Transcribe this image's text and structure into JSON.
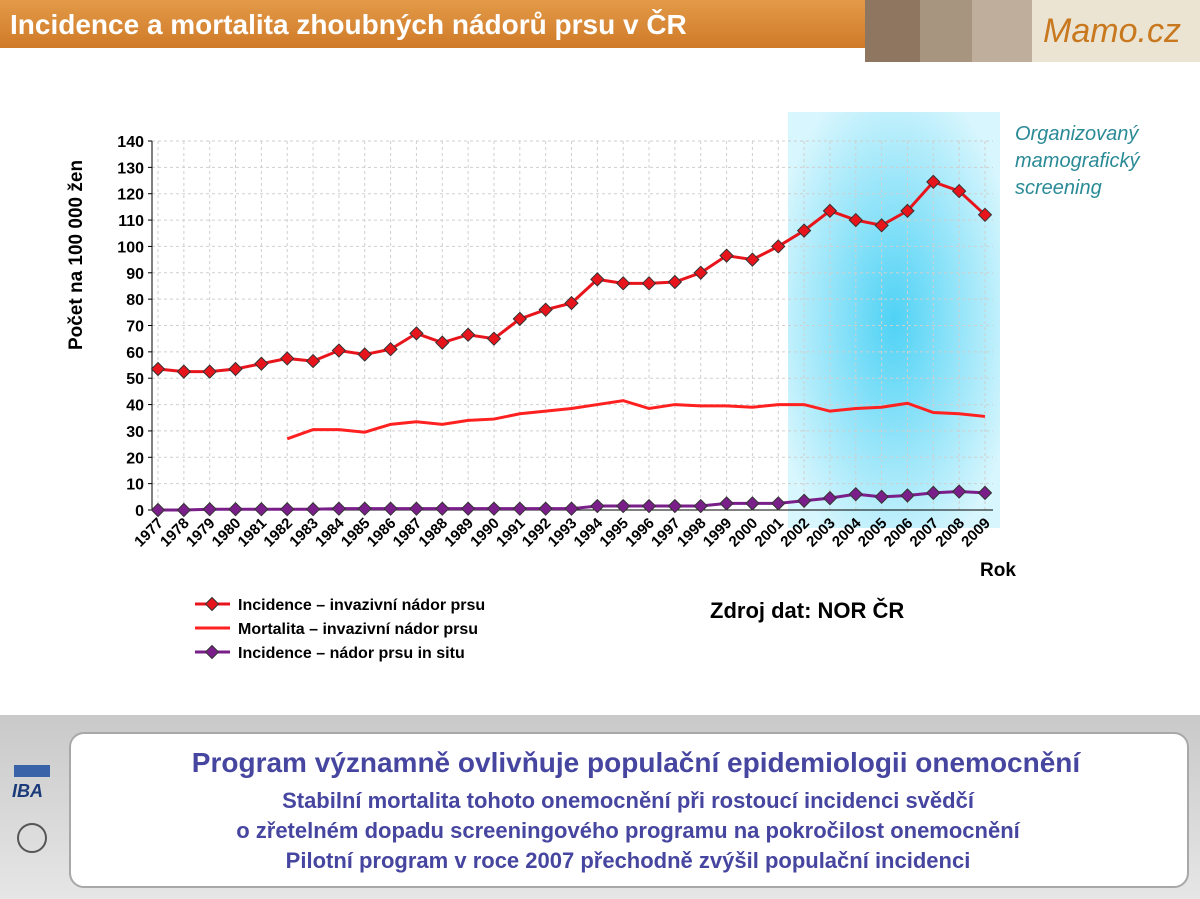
{
  "header": {
    "title": "Incidence a mortalita zhoubných nádorů prsu v ČR",
    "logo": "Mamo.cz"
  },
  "chart_data": {
    "type": "line",
    "y_label": "Počet  na 100 000 žen",
    "x_label": "Rok",
    "annotation": [
      "Organizovaný",
      "mamografický",
      "screening"
    ],
    "source": "Zdroj dat: NOR ČR",
    "categories": [
      "1977",
      "1978",
      "1979",
      "1980",
      "1981",
      "1982",
      "1983",
      "1984",
      "1985",
      "1986",
      "1987",
      "1988",
      "1989",
      "1990",
      "1991",
      "1992",
      "1993",
      "1994",
      "1995",
      "1996",
      "1997",
      "1998",
      "1999",
      "2000",
      "2001",
      "2002",
      "2003",
      "2004",
      "2005",
      "2006",
      "2007",
      "2008",
      "2009"
    ],
    "ylim": [
      0,
      140
    ],
    "yticks": [
      0,
      10,
      20,
      30,
      40,
      50,
      60,
      70,
      80,
      90,
      100,
      110,
      120,
      130,
      140
    ],
    "grid": true,
    "series": [
      {
        "name": "Incidence – invazivní nádor prsu",
        "color": "#e8141c",
        "marker": "diamond",
        "values": [
          53.5,
          52.5,
          52.5,
          53.5,
          55.5,
          57.5,
          56.5,
          60.5,
          59,
          61,
          67,
          63.5,
          66.5,
          65,
          72.5,
          76,
          78.5,
          87.5,
          86,
          86,
          86.5,
          90,
          96.5,
          95,
          100,
          106,
          113.5,
          110,
          108,
          113.5,
          124.5,
          121,
          112
        ]
      },
      {
        "name": "Mortalita – invazivní nádor prsu",
        "color": "#ff2020",
        "marker": "none",
        "values": [
          null,
          null,
          null,
          null,
          null,
          27,
          30.5,
          30.5,
          29.5,
          32.5,
          33.5,
          32.5,
          34,
          34.5,
          36.5,
          37.5,
          38.5,
          40,
          41.5,
          38.5,
          40,
          39.5,
          39.5,
          39,
          40,
          40,
          37.5,
          38.5,
          39,
          40.5,
          37,
          36.5,
          35.5
        ]
      },
      {
        "name": "Incidence – nádor prsu in situ",
        "color": "#7a1f8a",
        "marker": "diamond",
        "values": [
          0,
          0,
          0.3,
          0.3,
          0.3,
          0.3,
          0.3,
          0.5,
          0.5,
          0.5,
          0.5,
          0.5,
          0.5,
          0.5,
          0.5,
          0.5,
          0.5,
          1.5,
          1.5,
          1.5,
          1.5,
          1.5,
          2.5,
          2.5,
          2.5,
          3.5,
          4.5,
          6,
          5,
          5.5,
          6.5,
          7,
          6.5
        ]
      }
    ]
  },
  "summary": {
    "headline": "Program významně ovlivňuje populační epidemiologii onemocnění",
    "lines": [
      "Stabilní mortalita tohoto onemocnění při rostoucí incidenci svědčí",
      "o zřetelném dopadu screeningového programu na pokročilost onemocnění",
      "Pilotní program v roce 2007 přechodně zvýšil populační incidenci"
    ]
  },
  "logos": {
    "iba": "IBA"
  }
}
